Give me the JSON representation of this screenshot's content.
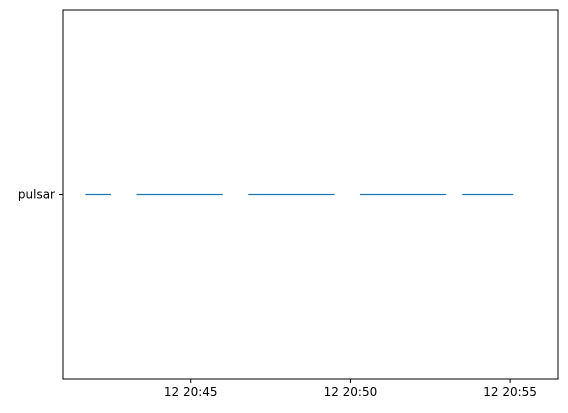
{
  "chart_data": {
    "type": "broken_barh",
    "title": "",
    "xlabel": "",
    "ylabel": "",
    "grid": false,
    "bar_color": "#1f77b4",
    "categories": [
      "pulsar"
    ],
    "x_axis": {
      "unit": "minutes",
      "range": [
        "20:41",
        "20:56:30"
      ],
      "ticks": [
        {
          "value": "20:45",
          "label": "12 20:45"
        },
        {
          "value": "20:50",
          "label": "12 20:50"
        },
        {
          "value": "20:55",
          "label": "12 20:55"
        }
      ]
    },
    "series": [
      {
        "category": "pulsar",
        "segments": [
          {
            "start": "20:41:42",
            "end": "20:42:30"
          },
          {
            "start": "20:43:18",
            "end": "20:46:00"
          },
          {
            "start": "20:46:48",
            "end": "20:49:30"
          },
          {
            "start": "20:50:18",
            "end": "20:53:00"
          },
          {
            "start": "20:53:30",
            "end": "20:55:06"
          }
        ]
      }
    ]
  }
}
